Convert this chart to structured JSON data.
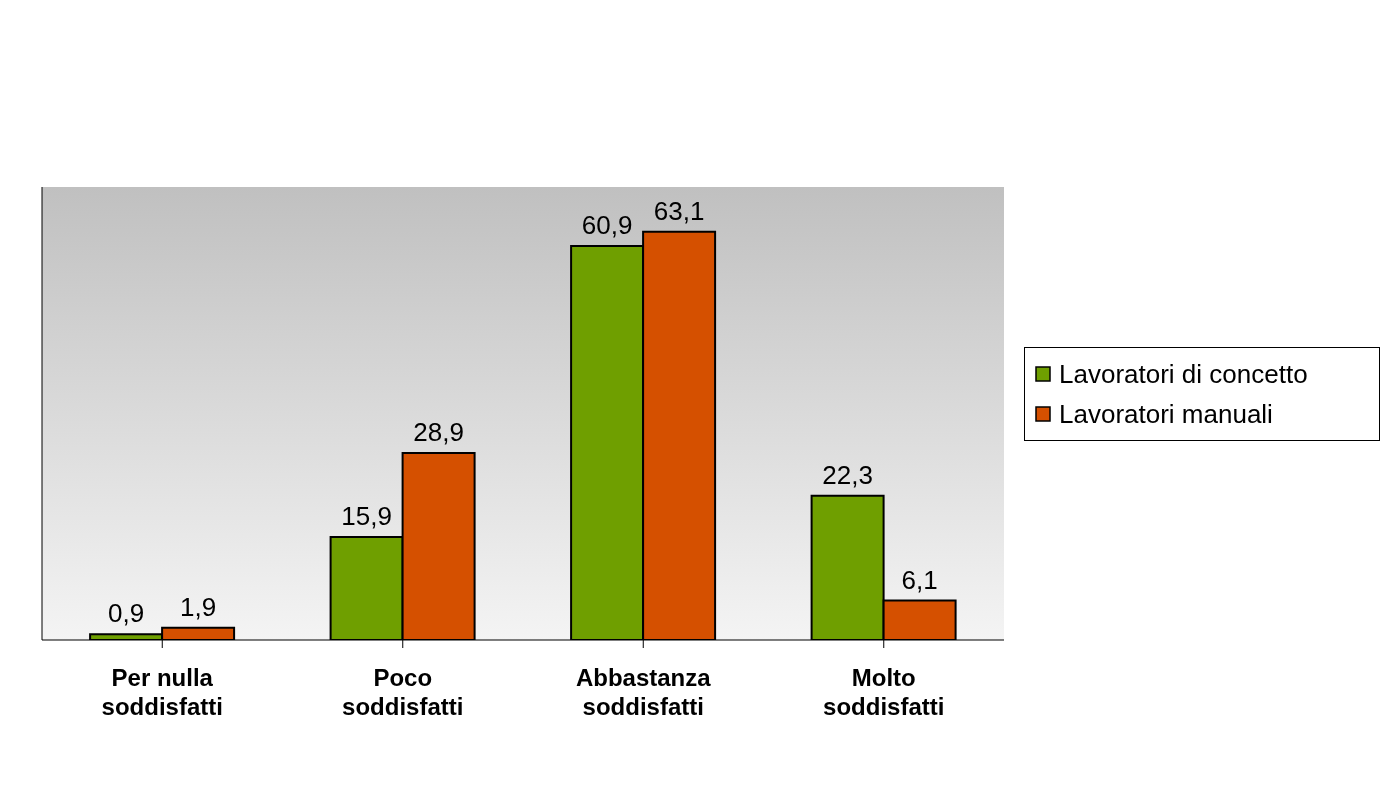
{
  "chart_data": {
    "type": "bar",
    "categories": [
      "Per nulla soddisfatti",
      "Poco soddisfatti",
      "Abbastanza soddisfatti",
      "Molto soddisfatti"
    ],
    "series": [
      {
        "name": "Lavoratori di concetto",
        "color": "#6f9f00",
        "values": [
          0.9,
          15.9,
          60.9,
          22.3
        ],
        "value_labels": [
          "0,9",
          "15,9",
          "60,9",
          "22,3"
        ]
      },
      {
        "name": "Lavoratori manuali",
        "color": "#d55000",
        "values": [
          1.9,
          28.9,
          63.1,
          6.1
        ],
        "value_labels": [
          "1,9",
          "28,9",
          "63,1",
          "6,1"
        ]
      }
    ],
    "ylim": [
      0,
      70
    ],
    "tick_labels": "x",
    "legend": "right"
  }
}
